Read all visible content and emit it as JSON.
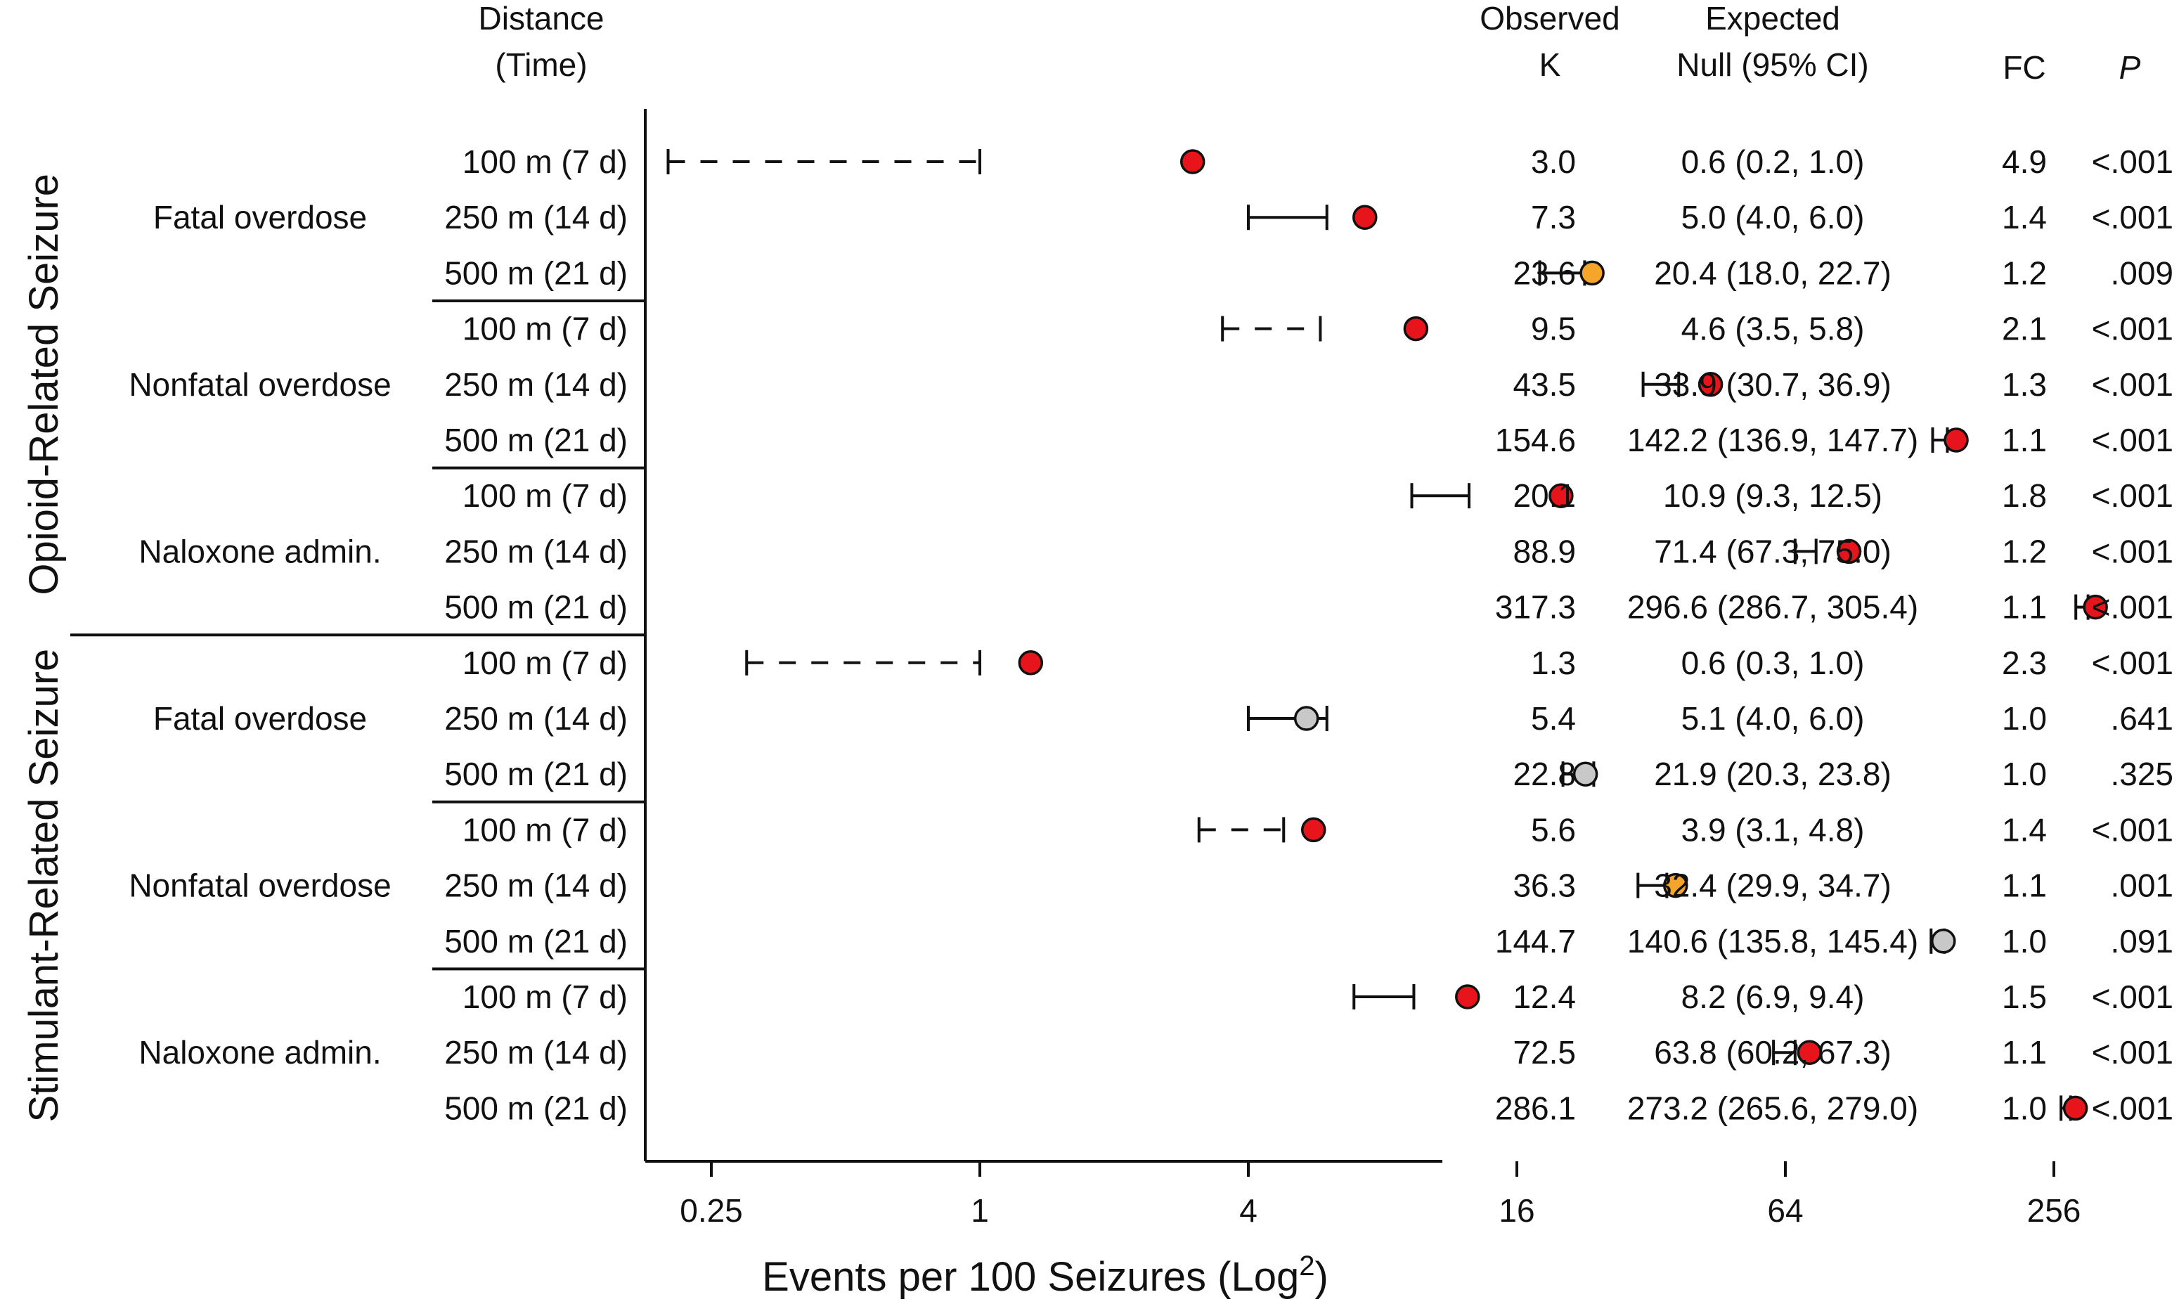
{
  "chart_data": {
    "type": "scatter",
    "subtype": "forest plot (point with 95% CI of expected null)",
    "xlabel": "Events per 100 Seizures (Log",
    "xlabel_sup": "2",
    "xlabel_close": ")",
    "x_scale": "log2",
    "xlim": [
      0.125,
      400
    ],
    "x_ticks": [
      0.25,
      1,
      4,
      16,
      64,
      256
    ],
    "x_tick_labels": [
      "0.25",
      "1",
      "4",
      "16",
      "64",
      "256"
    ],
    "grid": false,
    "legend": "none",
    "marker_colors": {
      "significant_high": "#e8141b",
      "significant_mid": "#f4a52a",
      "not_significant": "#c8c8c8"
    },
    "headers": {
      "distance_line1": "Distance",
      "distance_line2": "(Time)",
      "observed_line1": "Observed",
      "observed_line2": "K",
      "expected_line1": "Expected",
      "expected_line2": "Null (95% CI)",
      "fc": "FC",
      "p": "P"
    },
    "groups": [
      {
        "name": "Opioid-Related Seizure",
        "outcomes": [
          {
            "name": "Fatal overdose",
            "rows": [
              {
                "distance": "100 m  (7 d)",
                "observed": 3.0,
                "observed_text": "3.0",
                "null": 0.6,
                "ci_low": 0.2,
                "ci_high": 1.0,
                "null_text": "0.6 (0.2, 1.0)",
                "fc": "4.9",
                "p": "<.001",
                "color": "significant_high",
                "dashed": true
              },
              {
                "distance": "250 m (14 d)",
                "observed": 7.3,
                "observed_text": "7.3",
                "null": 5.0,
                "ci_low": 4.0,
                "ci_high": 6.0,
                "null_text": "5.0 (4.0, 6.0)",
                "fc": "1.4",
                "p": "<.001",
                "color": "significant_high",
                "dashed": false
              },
              {
                "distance": "500 m (21 d)",
                "observed": 23.6,
                "observed_text": "23.6",
                "null": 20.4,
                "ci_low": 18.0,
                "ci_high": 22.7,
                "null_text": "20.4 (18.0, 22.7)",
                "fc": "1.2",
                "p": ".009",
                "color": "significant_mid",
                "dashed": false
              }
            ]
          },
          {
            "name": "Nonfatal overdose",
            "rows": [
              {
                "distance": "100 m  (7 d)",
                "observed": 9.5,
                "observed_text": "9.5",
                "null": 4.6,
                "ci_low": 3.5,
                "ci_high": 5.8,
                "null_text": "4.6 (3.5, 5.8)",
                "fc": "2.1",
                "p": "<.001",
                "color": "significant_high",
                "dashed": true
              },
              {
                "distance": "250 m (14 d)",
                "observed": 43.5,
                "observed_text": "43.5",
                "null": 33.9,
                "ci_low": 30.7,
                "ci_high": 36.9,
                "null_text": "33.9 (30.7, 36.9)",
                "fc": "1.3",
                "p": "<.001",
                "color": "significant_high",
                "dashed": false
              },
              {
                "distance": "500 m (21 d)",
                "observed": 154.6,
                "observed_text": "154.6",
                "null": 142.2,
                "ci_low": 136.9,
                "ci_high": 147.7,
                "null_text": "142.2 (136.9, 147.7)",
                "fc": "1.1",
                "p": "<.001",
                "color": "significant_high",
                "dashed": false
              }
            ]
          },
          {
            "name": "Naloxone admin.",
            "rows": [
              {
                "distance": "100 m  (7 d)",
                "observed": 20.1,
                "observed_text": "20.1",
                "null": 10.9,
                "ci_low": 9.3,
                "ci_high": 12.5,
                "null_text": "10.9 (9.3, 12.5)",
                "fc": "1.8",
                "p": "<.001",
                "color": "significant_high",
                "dashed": false
              },
              {
                "distance": "250 m (14 d)",
                "observed": 88.9,
                "observed_text": "88.9",
                "null": 71.4,
                "ci_low": 67.3,
                "ci_high": 75.0,
                "null_text": "71.4 (67.3, 75.0)",
                "fc": "1.2",
                "p": "<.001",
                "color": "significant_high",
                "dashed": false
              },
              {
                "distance": "500 m (21 d)",
                "observed": 317.3,
                "observed_text": "317.3",
                "null": 296.6,
                "ci_low": 286.7,
                "ci_high": 305.4,
                "null_text": "296.6 (286.7, 305.4)",
                "fc": "1.1",
                "p": "<.001",
                "color": "significant_high",
                "dashed": false
              }
            ]
          }
        ]
      },
      {
        "name": "Stimulant-Related Seizure",
        "outcomes": [
          {
            "name": "Fatal overdose",
            "rows": [
              {
                "distance": "100 m  (7 d)",
                "observed": 1.3,
                "observed_text": "1.3",
                "null": 0.6,
                "ci_low": 0.3,
                "ci_high": 1.0,
                "null_text": "0.6 (0.3, 1.0)",
                "fc": "2.3",
                "p": "<.001",
                "color": "significant_high",
                "dashed": true
              },
              {
                "distance": "250 m (14 d)",
                "observed": 5.4,
                "observed_text": "5.4",
                "null": 5.1,
                "ci_low": 4.0,
                "ci_high": 6.0,
                "null_text": "5.1 (4.0, 6.0)",
                "fc": "1.0",
                "p": ".641",
                "color": "not_significant",
                "dashed": false
              },
              {
                "distance": "500 m (21 d)",
                "observed": 22.8,
                "observed_text": "22.8",
                "null": 21.9,
                "ci_low": 20.3,
                "ci_high": 23.8,
                "null_text": "21.9 (20.3, 23.8)",
                "fc": "1.0",
                "p": ".325",
                "color": "not_significant",
                "dashed": false
              }
            ]
          },
          {
            "name": "Nonfatal overdose",
            "rows": [
              {
                "distance": "100 m  (7 d)",
                "observed": 5.6,
                "observed_text": "5.6",
                "null": 3.9,
                "ci_low": 3.1,
                "ci_high": 4.8,
                "null_text": "3.9 (3.1, 4.8)",
                "fc": "1.4",
                "p": "<.001",
                "color": "significant_high",
                "dashed": true
              },
              {
                "distance": "250 m (14 d)",
                "observed": 36.3,
                "observed_text": "36.3",
                "null": 32.4,
                "ci_low": 29.9,
                "ci_high": 34.7,
                "null_text": "32.4 (29.9, 34.7)",
                "fc": "1.1",
                "p": ".001",
                "color": "significant_mid",
                "dashed": false
              },
              {
                "distance": "500 m (21 d)",
                "observed": 144.7,
                "observed_text": "144.7",
                "null": 140.6,
                "ci_low": 135.8,
                "ci_high": 145.4,
                "null_text": "140.6 (135.8, 145.4)",
                "fc": "1.0",
                "p": ".091",
                "color": "not_significant",
                "dashed": false
              }
            ]
          },
          {
            "name": "Naloxone admin.",
            "rows": [
              {
                "distance": "100 m  (7 d)",
                "observed": 12.4,
                "observed_text": "12.4",
                "null": 8.2,
                "ci_low": 6.9,
                "ci_high": 9.4,
                "null_text": "8.2 (6.9, 9.4)",
                "fc": "1.5",
                "p": "<.001",
                "color": "significant_high",
                "dashed": false
              },
              {
                "distance": "250 m (14 d)",
                "observed": 72.5,
                "observed_text": "72.5",
                "null": 63.8,
                "ci_low": 60.2,
                "ci_high": 67.3,
                "null_text": "63.8 (60.2, 67.3)",
                "fc": "1.1",
                "p": "<.001",
                "color": "significant_high",
                "dashed": false
              },
              {
                "distance": "500 m (21 d)",
                "observed": 286.1,
                "observed_text": "286.1",
                "null": 273.2,
                "ci_low": 265.6,
                "ci_high": 279.0,
                "null_text": "273.2 (265.6, 279.0)",
                "fc": "1.0",
                "p": "<.001",
                "color": "significant_high",
                "dashed": false
              }
            ]
          }
        ]
      }
    ]
  }
}
